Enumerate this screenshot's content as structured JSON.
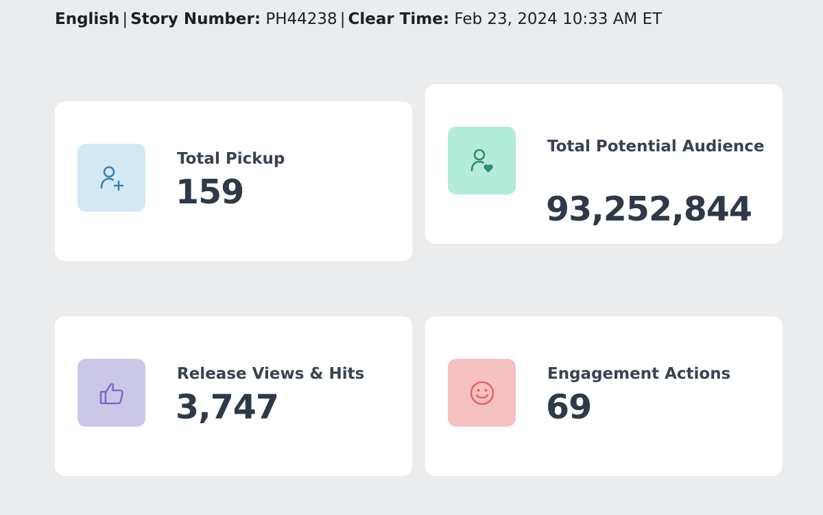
{
  "header": {
    "language": "English",
    "story_label": "Story Number:",
    "story_number": "PH44238",
    "clear_label": "Clear Time:",
    "clear_time": "Feb 23, 2024 10:33 AM ET",
    "separator": "|"
  },
  "cards": {
    "pickup": {
      "label": "Total Pickup",
      "value": "159",
      "icon": "person-add-icon",
      "tile_color": "#d2e8f3",
      "icon_color": "#3d7fa8"
    },
    "audience": {
      "label": "Total Potential Audience",
      "value": "93,252,844",
      "icon": "person-heart-icon",
      "tile_color": "#b3ecd8",
      "icon_color": "#2e8b7a"
    },
    "views": {
      "label": "Release Views & Hits",
      "value": "3,747",
      "icon": "thumbs-up-icon",
      "tile_color": "#cbc7e8",
      "icon_color": "#7a6cc4"
    },
    "engagement": {
      "label": "Engagement Actions",
      "value": "69",
      "icon": "smiley-face-icon",
      "tile_color": "#f6c1c1",
      "icon_color": "#e06666"
    }
  }
}
